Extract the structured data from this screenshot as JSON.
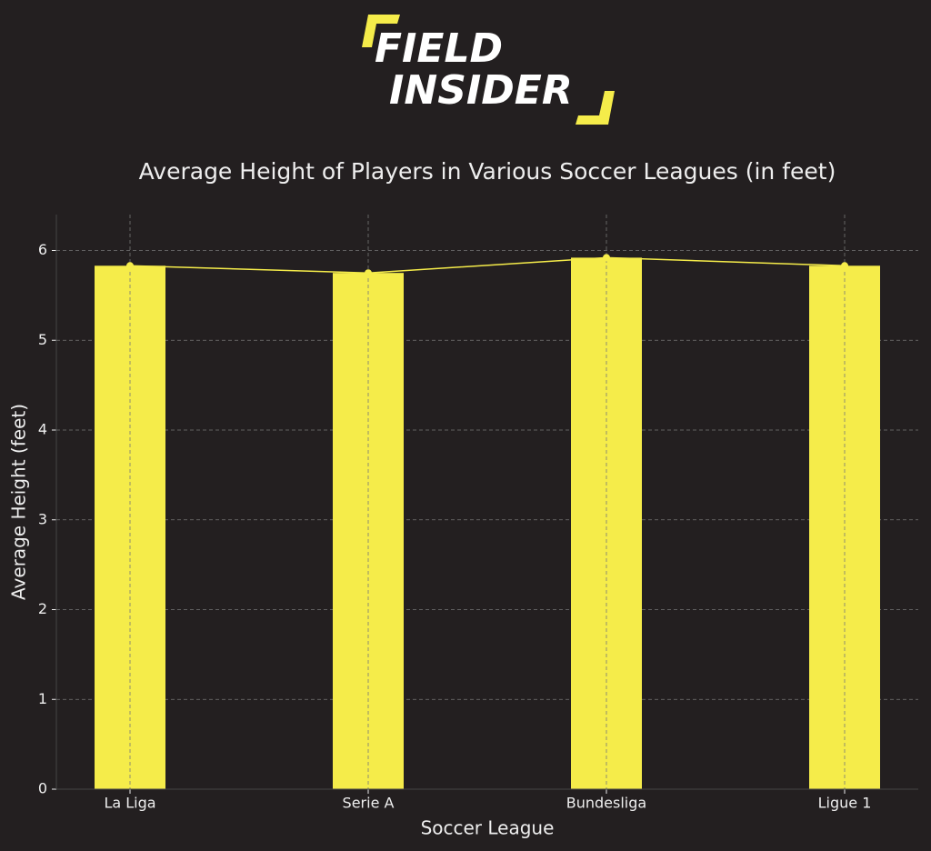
{
  "logo": {
    "line1": "FIELD",
    "line2": "INSIDER"
  },
  "chart_data": {
    "type": "bar",
    "title": "Average Height of Players in Various Soccer Leagues (in feet)",
    "x_label": "Soccer League",
    "y_label": "Average Height (feet)",
    "categories": [
      "La Liga",
      "Serie A",
      "Bundesliga",
      "Ligue 1"
    ],
    "values": [
      5.83,
      5.75,
      5.92,
      5.83
    ],
    "color": "#f5ec4a",
    "line_overlay": true,
    "line_color": "#f5ec4a",
    "ylim": [
      0,
      6.4
    ],
    "yticks": [
      0,
      1,
      2,
      3,
      4,
      5,
      6
    ],
    "grid": true
  }
}
